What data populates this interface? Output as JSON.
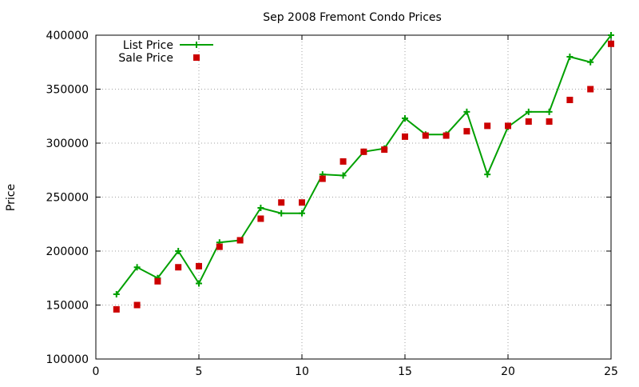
{
  "chart_data": {
    "type": "line",
    "title": "Sep 2008 Fremont Condo Prices",
    "xlabel": "",
    "ylabel": "Price",
    "xlim": [
      0,
      25
    ],
    "ylim": [
      100000,
      400000
    ],
    "xticks": [
      0,
      5,
      10,
      15,
      20,
      25
    ],
    "yticks": [
      100000,
      150000,
      200000,
      250000,
      300000,
      350000,
      400000
    ],
    "grid": true,
    "legend_position": "top-left",
    "x": [
      1,
      2,
      3,
      4,
      5,
      6,
      7,
      8,
      9,
      10,
      11,
      12,
      13,
      14,
      15,
      16,
      17,
      18,
      19,
      20,
      21,
      22,
      23,
      24,
      25
    ],
    "series": [
      {
        "name": "List Price",
        "style": "line-with-plus-markers",
        "color": "#00a000",
        "values": [
          160000,
          185000,
          175000,
          200000,
          170000,
          208000,
          210000,
          240000,
          235000,
          235000,
          271000,
          270000,
          292000,
          295000,
          323000,
          308000,
          308000,
          329000,
          271000,
          315000,
          329000,
          329000,
          380000,
          375000,
          400000
        ]
      },
      {
        "name": "Sale Price",
        "style": "square-markers",
        "color": "#cc0000",
        "values": [
          146000,
          150000,
          172000,
          185000,
          186000,
          204000,
          210000,
          230000,
          245000,
          245000,
          267000,
          283000,
          292000,
          294000,
          306000,
          307000,
          307000,
          311000,
          316000,
          316000,
          320000,
          320000,
          340000,
          350000,
          392000
        ]
      }
    ]
  }
}
